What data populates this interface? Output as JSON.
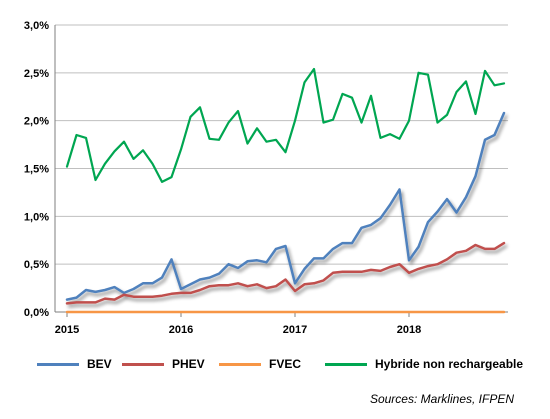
{
  "chart_data": {
    "type": "line",
    "title": "",
    "xlabel": "",
    "ylabel": "",
    "x_tick_labels": [
      "2015",
      "2016",
      "2017",
      "2018"
    ],
    "y_tick_labels": [
      "0,0%",
      "0,5%",
      "1,0%",
      "1,5%",
      "2,0%",
      "2,5%",
      "3,0%"
    ],
    "ylim": [
      0,
      3.0
    ],
    "ytick_step": 0.5,
    "x_start": "2015-01",
    "x_end": "2018-11",
    "grid": "horizontal",
    "legend_position": "bottom",
    "series": [
      {
        "name": "BEV",
        "color": "#4f81bd",
        "shadow": true,
        "values": [
          0.13,
          0.15,
          0.23,
          0.21,
          0.23,
          0.26,
          0.2,
          0.24,
          0.3,
          0.3,
          0.36,
          0.55,
          0.24,
          0.29,
          0.34,
          0.36,
          0.4,
          0.5,
          0.46,
          0.53,
          0.54,
          0.52,
          0.66,
          0.69,
          0.3,
          0.45,
          0.56,
          0.56,
          0.66,
          0.72,
          0.72,
          0.88,
          0.91,
          0.98,
          1.12,
          1.28,
          0.54,
          0.68,
          0.94,
          1.05,
          1.18,
          1.04,
          1.2,
          1.42,
          1.8,
          1.85,
          2.08
        ]
      },
      {
        "name": "PHEV",
        "color": "#c0504d",
        "shadow": true,
        "values": [
          0.09,
          0.1,
          0.1,
          0.1,
          0.14,
          0.13,
          0.18,
          0.16,
          0.16,
          0.16,
          0.17,
          0.19,
          0.2,
          0.2,
          0.23,
          0.27,
          0.28,
          0.28,
          0.3,
          0.27,
          0.29,
          0.25,
          0.27,
          0.34,
          0.22,
          0.29,
          0.3,
          0.33,
          0.41,
          0.42,
          0.42,
          0.42,
          0.44,
          0.43,
          0.47,
          0.5,
          0.41,
          0.45,
          0.48,
          0.5,
          0.55,
          0.62,
          0.64,
          0.7,
          0.66,
          0.66,
          0.72
        ]
      },
      {
        "name": "FVEC",
        "color": "#f79646",
        "shadow": false,
        "values": [
          0,
          0,
          0,
          0,
          0,
          0,
          0,
          0,
          0,
          0,
          0,
          0,
          0,
          0,
          0,
          0,
          0,
          0,
          0,
          0,
          0,
          0,
          0,
          0,
          0,
          0,
          0,
          0,
          0,
          0,
          0,
          0,
          0,
          0,
          0,
          0,
          0,
          0,
          0,
          0,
          0,
          0,
          0,
          0,
          0,
          0,
          0
        ]
      },
      {
        "name": "Hybride non rechargeable",
        "color": "#00a651",
        "shadow": false,
        "values": [
          1.52,
          1.85,
          1.82,
          1.38,
          1.55,
          1.68,
          1.78,
          1.6,
          1.69,
          1.55,
          1.36,
          1.41,
          1.7,
          2.04,
          2.14,
          1.81,
          1.8,
          1.98,
          2.1,
          1.76,
          1.92,
          1.78,
          1.8,
          1.67,
          2.0,
          2.4,
          2.54,
          1.98,
          2.01,
          2.28,
          2.24,
          1.98,
          2.26,
          1.82,
          1.86,
          1.81,
          2.0,
          2.5,
          2.48,
          1.98,
          2.06,
          2.3,
          2.41,
          2.07,
          2.52,
          2.37,
          2.39
        ]
      }
    ],
    "annotations": [
      "Sources: Marklines, IFPEN"
    ]
  }
}
